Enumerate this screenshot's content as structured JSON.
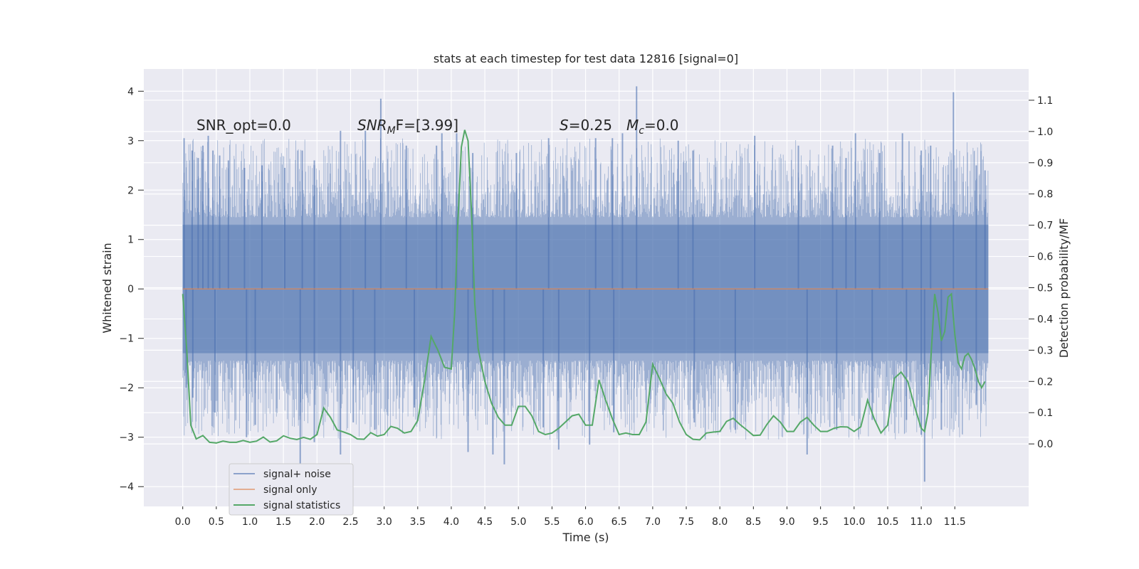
{
  "chart_data": {
    "type": "line",
    "title": "stats at each timestep for test data 12816 [signal=0]",
    "xlabel": "Time (s)",
    "ylabel_left": "Whitened strain",
    "ylabel_right": "Detection probability/MF",
    "xlim": [
      -0.58,
      12.6
    ],
    "ylim_left": [
      -4.4,
      4.45
    ],
    "ylim_right": [
      -0.2,
      1.2
    ],
    "x_ticks": [
      0.0,
      0.5,
      1.0,
      1.5,
      2.0,
      2.5,
      3.0,
      3.5,
      4.0,
      4.5,
      5.0,
      5.5,
      6.0,
      6.5,
      7.0,
      7.5,
      8.0,
      8.5,
      9.0,
      9.5,
      10.0,
      10.5,
      11.0,
      11.5
    ],
    "x_tick_labels": [
      "0.0",
      "0.5",
      "1.0",
      "1.5",
      "2.0",
      "2.5",
      "3.0",
      "3.5",
      "4.0",
      "4.5",
      "5.0",
      "5.5",
      "6.0",
      "6.5",
      "7.0",
      "7.5",
      "8.0",
      "8.5",
      "9.0",
      "9.5",
      "10.0",
      "10.5",
      "11.0",
      "11.5"
    ],
    "y_left_ticks": [
      4,
      3,
      2,
      1,
      0,
      -1,
      -2,
      -3,
      -4
    ],
    "y_left_tick_labels": [
      "4",
      "3",
      "2",
      "1",
      "0",
      "−1",
      "−2",
      "−3",
      "−4"
    ],
    "y_right_ticks": [
      1.1,
      1.0,
      0.9,
      0.8,
      0.7,
      0.6,
      0.5,
      0.4,
      0.3,
      0.2,
      0.1,
      0.0
    ],
    "y_right_tick_labels": [
      "1.1",
      "1.0",
      "0.9",
      "0.8",
      "0.7",
      "0.6",
      "0.5",
      "0.4",
      "0.3",
      "0.2",
      "0.1",
      "0.0"
    ],
    "grid": true,
    "legend_position": "lower-left",
    "annotations": [
      {
        "prefix": "SNR_opt=0.0",
        "sub": "",
        "suffix": ""
      },
      {
        "prefix": "SNR",
        "sub": "M",
        "suffix": "F=[3.99]"
      },
      {
        "prefix": "S",
        "sub": "",
        "suffix": "=0.25"
      },
      {
        "prefix": "M",
        "sub": "c",
        "suffix": "=0.0"
      }
    ],
    "series": [
      {
        "name": "signal+ noise",
        "axis": "left",
        "color": "#4c72b0",
        "opacity": 0.5,
        "style": "dense-noise",
        "x_range": [
          0.0,
          12.0
        ],
        "band": [
          -1.3,
          1.3
        ],
        "peaks_high": [
          [
            0.02,
            3.05
          ],
          [
            0.14,
            2.8
          ],
          [
            0.23,
            2.65
          ],
          [
            0.3,
            2.9
          ],
          [
            0.38,
            3.1
          ],
          [
            0.45,
            2.8
          ],
          [
            0.55,
            2.7
          ],
          [
            0.68,
            2.6
          ],
          [
            0.92,
            2.45
          ],
          [
            1.18,
            2.5
          ],
          [
            1.52,
            2.45
          ],
          [
            1.78,
            2.8
          ],
          [
            1.96,
            2.6
          ],
          [
            2.35,
            3.2
          ],
          [
            2.72,
            3.2
          ],
          [
            2.95,
            3.85
          ],
          [
            3.33,
            2.9
          ],
          [
            3.78,
            2.9
          ],
          [
            3.86,
            3.15
          ],
          [
            4.08,
            3.15
          ],
          [
            4.32,
            2.75
          ],
          [
            4.97,
            2.75
          ],
          [
            5.45,
            3.05
          ],
          [
            6.15,
            3.05
          ],
          [
            6.4,
            3.05
          ],
          [
            6.55,
            3.15
          ],
          [
            6.76,
            4.1
          ],
          [
            7.38,
            3.0
          ],
          [
            7.6,
            2.8
          ],
          [
            8.52,
            3.1
          ],
          [
            9.17,
            2.9
          ],
          [
            9.68,
            2.9
          ],
          [
            9.88,
            2.65
          ],
          [
            10.02,
            3.15
          ],
          [
            10.38,
            2.75
          ],
          [
            10.72,
            3.15
          ],
          [
            11.0,
            2.8
          ],
          [
            11.14,
            2.9
          ],
          [
            11.48,
            3.98
          ],
          [
            11.82,
            2.5
          ],
          [
            11.95,
            2.4
          ]
        ],
        "peaks_low": [
          [
            0.05,
            -2.0
          ],
          [
            0.15,
            -2.2
          ],
          [
            0.48,
            -2.5
          ],
          [
            0.95,
            -3.0
          ],
          [
            1.08,
            -2.75
          ],
          [
            1.75,
            -3.55
          ],
          [
            1.96,
            -3.1
          ],
          [
            2.35,
            -3.35
          ],
          [
            2.54,
            -2.7
          ],
          [
            2.86,
            -2.85
          ],
          [
            3.45,
            -2.4
          ],
          [
            4.25,
            -3.3
          ],
          [
            4.62,
            -3.35
          ],
          [
            4.79,
            -3.55
          ],
          [
            5.37,
            -2.8
          ],
          [
            5.6,
            -3.25
          ],
          [
            6.06,
            -3.15
          ],
          [
            6.42,
            -2.9
          ],
          [
            7.62,
            -2.7
          ],
          [
            8.23,
            -2.85
          ],
          [
            9.3,
            -3.35
          ],
          [
            9.74,
            -2.85
          ],
          [
            10.27,
            -2.65
          ],
          [
            10.78,
            -2.65
          ],
          [
            11.0,
            -2.95
          ],
          [
            11.05,
            -3.9
          ],
          [
            11.3,
            -2.85
          ],
          [
            11.82,
            -2.35
          ]
        ]
      },
      {
        "name": "signal only",
        "axis": "left",
        "color": "#dd8452",
        "x": [
          0.0,
          12.0
        ],
        "y": [
          0.0,
          0.0
        ]
      },
      {
        "name": "signal statistics",
        "axis": "right",
        "color": "#55a868",
        "x": [
          0.0,
          0.06,
          0.12,
          0.2,
          0.3,
          0.4,
          0.5,
          0.6,
          0.7,
          0.8,
          0.9,
          1.0,
          1.1,
          1.2,
          1.3,
          1.4,
          1.5,
          1.6,
          1.7,
          1.8,
          1.9,
          2.0,
          2.1,
          2.2,
          2.3,
          2.4,
          2.5,
          2.6,
          2.7,
          2.8,
          2.9,
          3.0,
          3.1,
          3.2,
          3.3,
          3.4,
          3.5,
          3.6,
          3.7,
          3.8,
          3.9,
          4.0,
          4.05,
          4.1,
          4.15,
          4.2,
          4.25,
          4.3,
          4.35,
          4.4,
          4.5,
          4.6,
          4.7,
          4.8,
          4.9,
          5.0,
          5.1,
          5.2,
          5.3,
          5.4,
          5.5,
          5.6,
          5.7,
          5.8,
          5.9,
          6.0,
          6.1,
          6.2,
          6.3,
          6.4,
          6.5,
          6.6,
          6.7,
          6.8,
          6.9,
          7.0,
          7.1,
          7.2,
          7.3,
          7.4,
          7.5,
          7.6,
          7.7,
          7.8,
          7.9,
          8.0,
          8.1,
          8.2,
          8.3,
          8.4,
          8.5,
          8.6,
          8.7,
          8.8,
          8.9,
          9.0,
          9.1,
          9.2,
          9.3,
          9.4,
          9.5,
          9.6,
          9.7,
          9.8,
          9.9,
          10.0,
          10.1,
          10.2,
          10.3,
          10.4,
          10.5,
          10.6,
          10.7,
          10.8,
          10.9,
          11.0,
          11.05,
          11.1,
          11.15,
          11.2,
          11.25,
          11.3,
          11.35,
          11.4,
          11.45,
          11.5,
          11.55,
          11.6,
          11.65,
          11.7,
          11.75,
          11.8,
          11.85,
          11.9,
          11.95
        ],
        "y": [
          0.48,
          0.3,
          0.06,
          0.016,
          0.027,
          0.005,
          0.003,
          0.009,
          0.005,
          0.005,
          0.011,
          0.005,
          0.009,
          0.022,
          0.006,
          0.01,
          0.026,
          0.018,
          0.014,
          0.021,
          0.015,
          0.03,
          0.115,
          0.085,
          0.045,
          0.038,
          0.03,
          0.016,
          0.015,
          0.036,
          0.025,
          0.03,
          0.056,
          0.05,
          0.035,
          0.04,
          0.075,
          0.2,
          0.344,
          0.3,
          0.245,
          0.24,
          0.42,
          0.72,
          0.95,
          1.005,
          0.97,
          0.75,
          0.45,
          0.305,
          0.2,
          0.13,
          0.085,
          0.06,
          0.06,
          0.12,
          0.12,
          0.09,
          0.04,
          0.03,
          0.035,
          0.05,
          0.07,
          0.09,
          0.095,
          0.06,
          0.06,
          0.205,
          0.14,
          0.08,
          0.03,
          0.035,
          0.03,
          0.03,
          0.07,
          0.255,
          0.21,
          0.16,
          0.13,
          0.07,
          0.03,
          0.015,
          0.013,
          0.035,
          0.038,
          0.04,
          0.072,
          0.082,
          0.062,
          0.045,
          0.027,
          0.028,
          0.062,
          0.09,
          0.07,
          0.04,
          0.04,
          0.07,
          0.085,
          0.06,
          0.04,
          0.04,
          0.05,
          0.055,
          0.054,
          0.04,
          0.055,
          0.14,
          0.08,
          0.035,
          0.06,
          0.21,
          0.23,
          0.2,
          0.12,
          0.05,
          0.04,
          0.1,
          0.3,
          0.48,
          0.42,
          0.33,
          0.36,
          0.47,
          0.48,
          0.35,
          0.26,
          0.24,
          0.28,
          0.29,
          0.27,
          0.24,
          0.2,
          0.18,
          0.2
        ]
      }
    ]
  }
}
